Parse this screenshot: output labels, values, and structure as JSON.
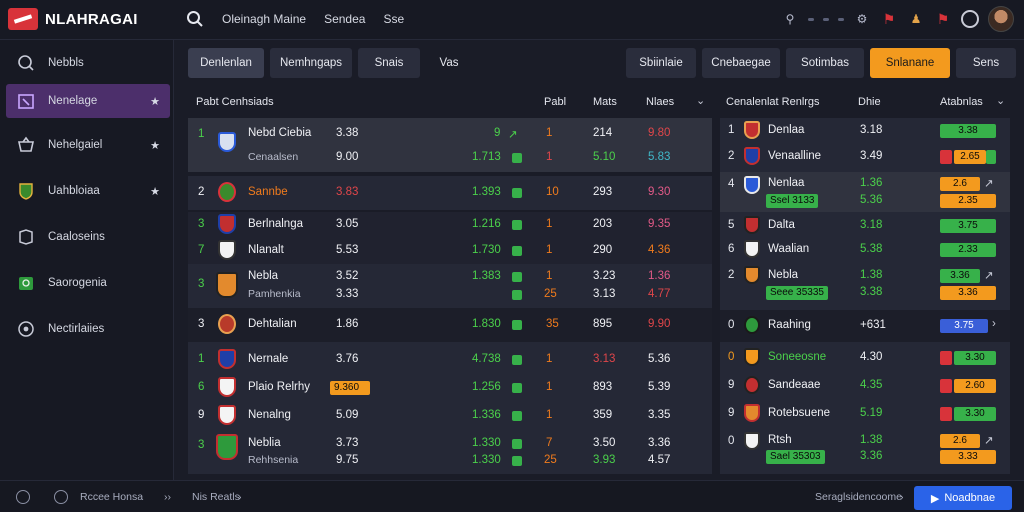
{
  "app": {
    "title": "NLAHRAGAI"
  },
  "topnav": [
    "Oleinagh Maine",
    "Sendea",
    "Sse"
  ],
  "sidebar": [
    {
      "label": "Nebbls",
      "star": false
    },
    {
      "label": "Nenelage",
      "star": true
    },
    {
      "label": "Nehelgaiel",
      "star": true
    },
    {
      "label": "Uahbloiaa",
      "star": true
    },
    {
      "label": "Caaloseins",
      "star": false
    },
    {
      "label": "Saorogenia",
      "star": false
    },
    {
      "label": "Nectirlaiies",
      "star": false
    }
  ],
  "tabs_left": [
    "Denlenlan",
    "Nemhngaps",
    "Snais",
    "Vas"
  ],
  "tabs_right": [
    "Sbiinlaie",
    "Cnebaegae",
    "Sotimbas",
    "Snlanane",
    "Sens"
  ],
  "left_panel": {
    "header": {
      "title": "Pabt Cenhsiads",
      "c1": "Pabl",
      "c2": "Mats",
      "c3": "Nlaes"
    },
    "rows": [
      {
        "rank": "1",
        "name": "Nebd Ciebia",
        "sub": "Cenaalsen",
        "v1": "3.38",
        "v1b": "9.00",
        "a": "9",
        "ab": "1.713",
        "b": "1",
        "bb": "1",
        "c": "214",
        "cb": "5.10",
        "d": "9.80",
        "db": "5.83"
      },
      {
        "rank": "2",
        "name": "Sannbe",
        "sub": "",
        "v1": "3.83",
        "v1b": "",
        "a": "",
        "ab": "1.393",
        "b": "10",
        "bb": "",
        "c": "293",
        "cb": "",
        "d": "9.30",
        "db": ""
      },
      {
        "rank": "3",
        "name": "Berlnalnga",
        "sub": "",
        "v1": "3.05",
        "v1b": "",
        "a": "",
        "ab": "1.216",
        "b": "1",
        "bb": "",
        "c": "203",
        "cb": "",
        "d": "9.35",
        "db": ""
      },
      {
        "rank": "7",
        "name": "Nlanalt",
        "sub": "",
        "v1": "5.53",
        "v1b": "",
        "a": "",
        "ab": "1.730",
        "b": "1",
        "bb": "",
        "c": "290",
        "cb": "",
        "d": "4.36",
        "db": ""
      },
      {
        "rank": "3",
        "name": "Nebla",
        "sub": "Pamhenkia",
        "v1": "3.52",
        "v1b": "3.33",
        "a": "",
        "ab": "1.383",
        "b": "1",
        "bb": "25",
        "c": "3.23",
        "cb": "3.13",
        "d": "1.36",
        "db": "4.77"
      },
      {
        "rank": "3",
        "name": "Dehtalian",
        "sub": "",
        "v1": "1.86",
        "v1b": "",
        "a": "",
        "ab": "1.830",
        "b": "35",
        "bb": "",
        "c": "895",
        "cb": "",
        "d": "9.90",
        "db": ""
      },
      {
        "rank": "1",
        "name": "Nernale",
        "sub": "",
        "v1": "3.76",
        "v1b": "",
        "a": "",
        "ab": "4.738",
        "b": "1",
        "bb": "",
        "c": "3.13",
        "cb": "",
        "d": "5.36",
        "db": ""
      },
      {
        "rank": "6",
        "name": "Plaio Relrhy",
        "sub": "",
        "v1": "9.360",
        "v1b": "",
        "a": "",
        "ab": "1.256",
        "b": "1",
        "bb": "",
        "c": "893",
        "cb": "",
        "d": "5.39",
        "db": ""
      },
      {
        "rank": "9",
        "name": "Nenalng",
        "sub": "",
        "v1": "5.09",
        "v1b": "",
        "a": "",
        "ab": "1.336",
        "b": "1",
        "bb": "",
        "c": "359",
        "cb": "",
        "d": "3.35",
        "db": ""
      },
      {
        "rank": "3",
        "name": "Neblia",
        "sub": "Rehhsenia",
        "v1": "3.73",
        "v1b": "9.75",
        "a": "",
        "ab": "1.330",
        "b": "7",
        "bb": "25",
        "c": "3.50",
        "cb": "3.93",
        "d": "3.36",
        "db": "4.57"
      }
    ]
  },
  "right_panel": {
    "header": {
      "title": "Cenalenlat Renlrgs",
      "c1": "Dhie",
      "c2": "Atabnlas"
    },
    "rows": [
      {
        "rank": "1",
        "name": "Denlaa",
        "sub": "",
        "val": "3.18",
        "valb": "",
        "o1": "3.38",
        "o1b": ""
      },
      {
        "rank": "2",
        "name": "Venaalline",
        "sub": "",
        "val": "3.49",
        "valb": "",
        "o1": "2.65",
        "o1b": ""
      },
      {
        "rank": "4",
        "name": "Nenlaa",
        "sub": "Ssel 3133",
        "val": "1.36",
        "valb": "5.36",
        "o1": "2.6",
        "o1b": "2.35"
      },
      {
        "rank": "5",
        "name": "Dalta",
        "sub": "",
        "val": "3.18",
        "valb": "",
        "o1": "3.75",
        "o1b": ""
      },
      {
        "rank": "6",
        "name": "Waalian",
        "sub": "",
        "val": "5.38",
        "valb": "",
        "o1": "2.33",
        "o1b": ""
      },
      {
        "rank": "2",
        "name": "Nebla",
        "sub": "Seee 35335",
        "val": "1.38",
        "valb": "3.38",
        "o1": "3.36",
        "o1b": "3.36"
      },
      {
        "rank": "0",
        "name": "Raahing",
        "sub": "",
        "val": "+631",
        "valb": "",
        "o1": "3.75",
        "o1b": ""
      },
      {
        "rank": "0",
        "name": "Soneeosne",
        "sub": "",
        "val": "4.30",
        "valb": "",
        "o1": "3.30",
        "o1b": ""
      },
      {
        "rank": "9",
        "name": "Sandeaae",
        "sub": "",
        "val": "4.35",
        "valb": "",
        "o1": "2.60",
        "o1b": ""
      },
      {
        "rank": "9",
        "name": "Rotebsuene",
        "sub": "",
        "val": "5.19",
        "valb": "",
        "o1": "3.30",
        "o1b": ""
      },
      {
        "rank": "0",
        "name": "Rtsh",
        "sub": "Sael 35303",
        "val": "1.38",
        "valb": "3.36",
        "o1": "2.6",
        "o1b": "3.33"
      }
    ]
  },
  "footer": {
    "left_text": "Rccee Honsa",
    "mid_text": "Nis Reatls",
    "right_text": "Seraglsidencoome",
    "button": "Noadbnae"
  },
  "colors": {
    "accent": "#f39a1e",
    "active_sidebar": "#4c2f6b",
    "primary_button": "#2a63e8",
    "green": "#4bd14b"
  }
}
